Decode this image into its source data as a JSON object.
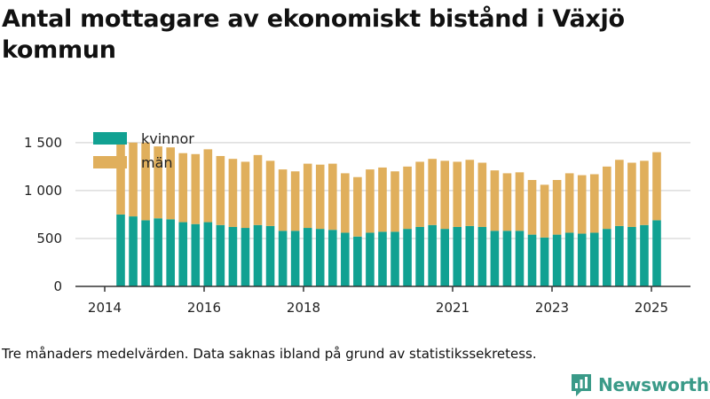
{
  "title": "Antal mottagare av ekonomiskt bistånd i Växjö kommun",
  "footnote": "Tre månaders medelvärden. Data saknas ibland på grund av statistikssekretess.",
  "brand": "Newsworthy",
  "colors": {
    "kvinnor": "#11a192",
    "man": "#e0af5c",
    "grid": "#dddddd",
    "axis": "#333333",
    "brand": "#3a9a88"
  },
  "chart_data": {
    "type": "bar",
    "stacked": true,
    "x_ticks": [
      "2014",
      "2016",
      "2018",
      "2021",
      "2023",
      "2025"
    ],
    "y_ticks": [
      "0",
      "500",
      "1 000",
      "1 500"
    ],
    "ylim": [
      0,
      1600
    ],
    "grid": true,
    "legend_position": "top-left",
    "series": [
      {
        "name": "kvinnor",
        "color": "#11a192",
        "values": [
          750,
          730,
          690,
          710,
          700,
          670,
          650,
          670,
          640,
          620,
          610,
          640,
          630,
          580,
          580,
          610,
          600,
          590,
          560,
          520,
          560,
          570,
          570,
          600,
          620,
          640,
          600,
          620,
          630,
          620,
          580,
          580,
          580,
          540,
          510,
          540,
          560,
          550,
          560,
          600,
          630,
          620,
          640,
          690
        ]
      },
      {
        "name": "män",
        "color": "#e0af5c",
        "values": [
          760,
          770,
          810,
          750,
          750,
          720,
          730,
          760,
          720,
          710,
          690,
          730,
          680,
          640,
          620,
          670,
          670,
          690,
          620,
          620,
          660,
          670,
          630,
          650,
          680,
          690,
          710,
          680,
          690,
          670,
          630,
          600,
          610,
          570,
          550,
          570,
          620,
          610,
          610,
          650,
          690,
          670,
          670,
          710
        ]
      }
    ]
  }
}
